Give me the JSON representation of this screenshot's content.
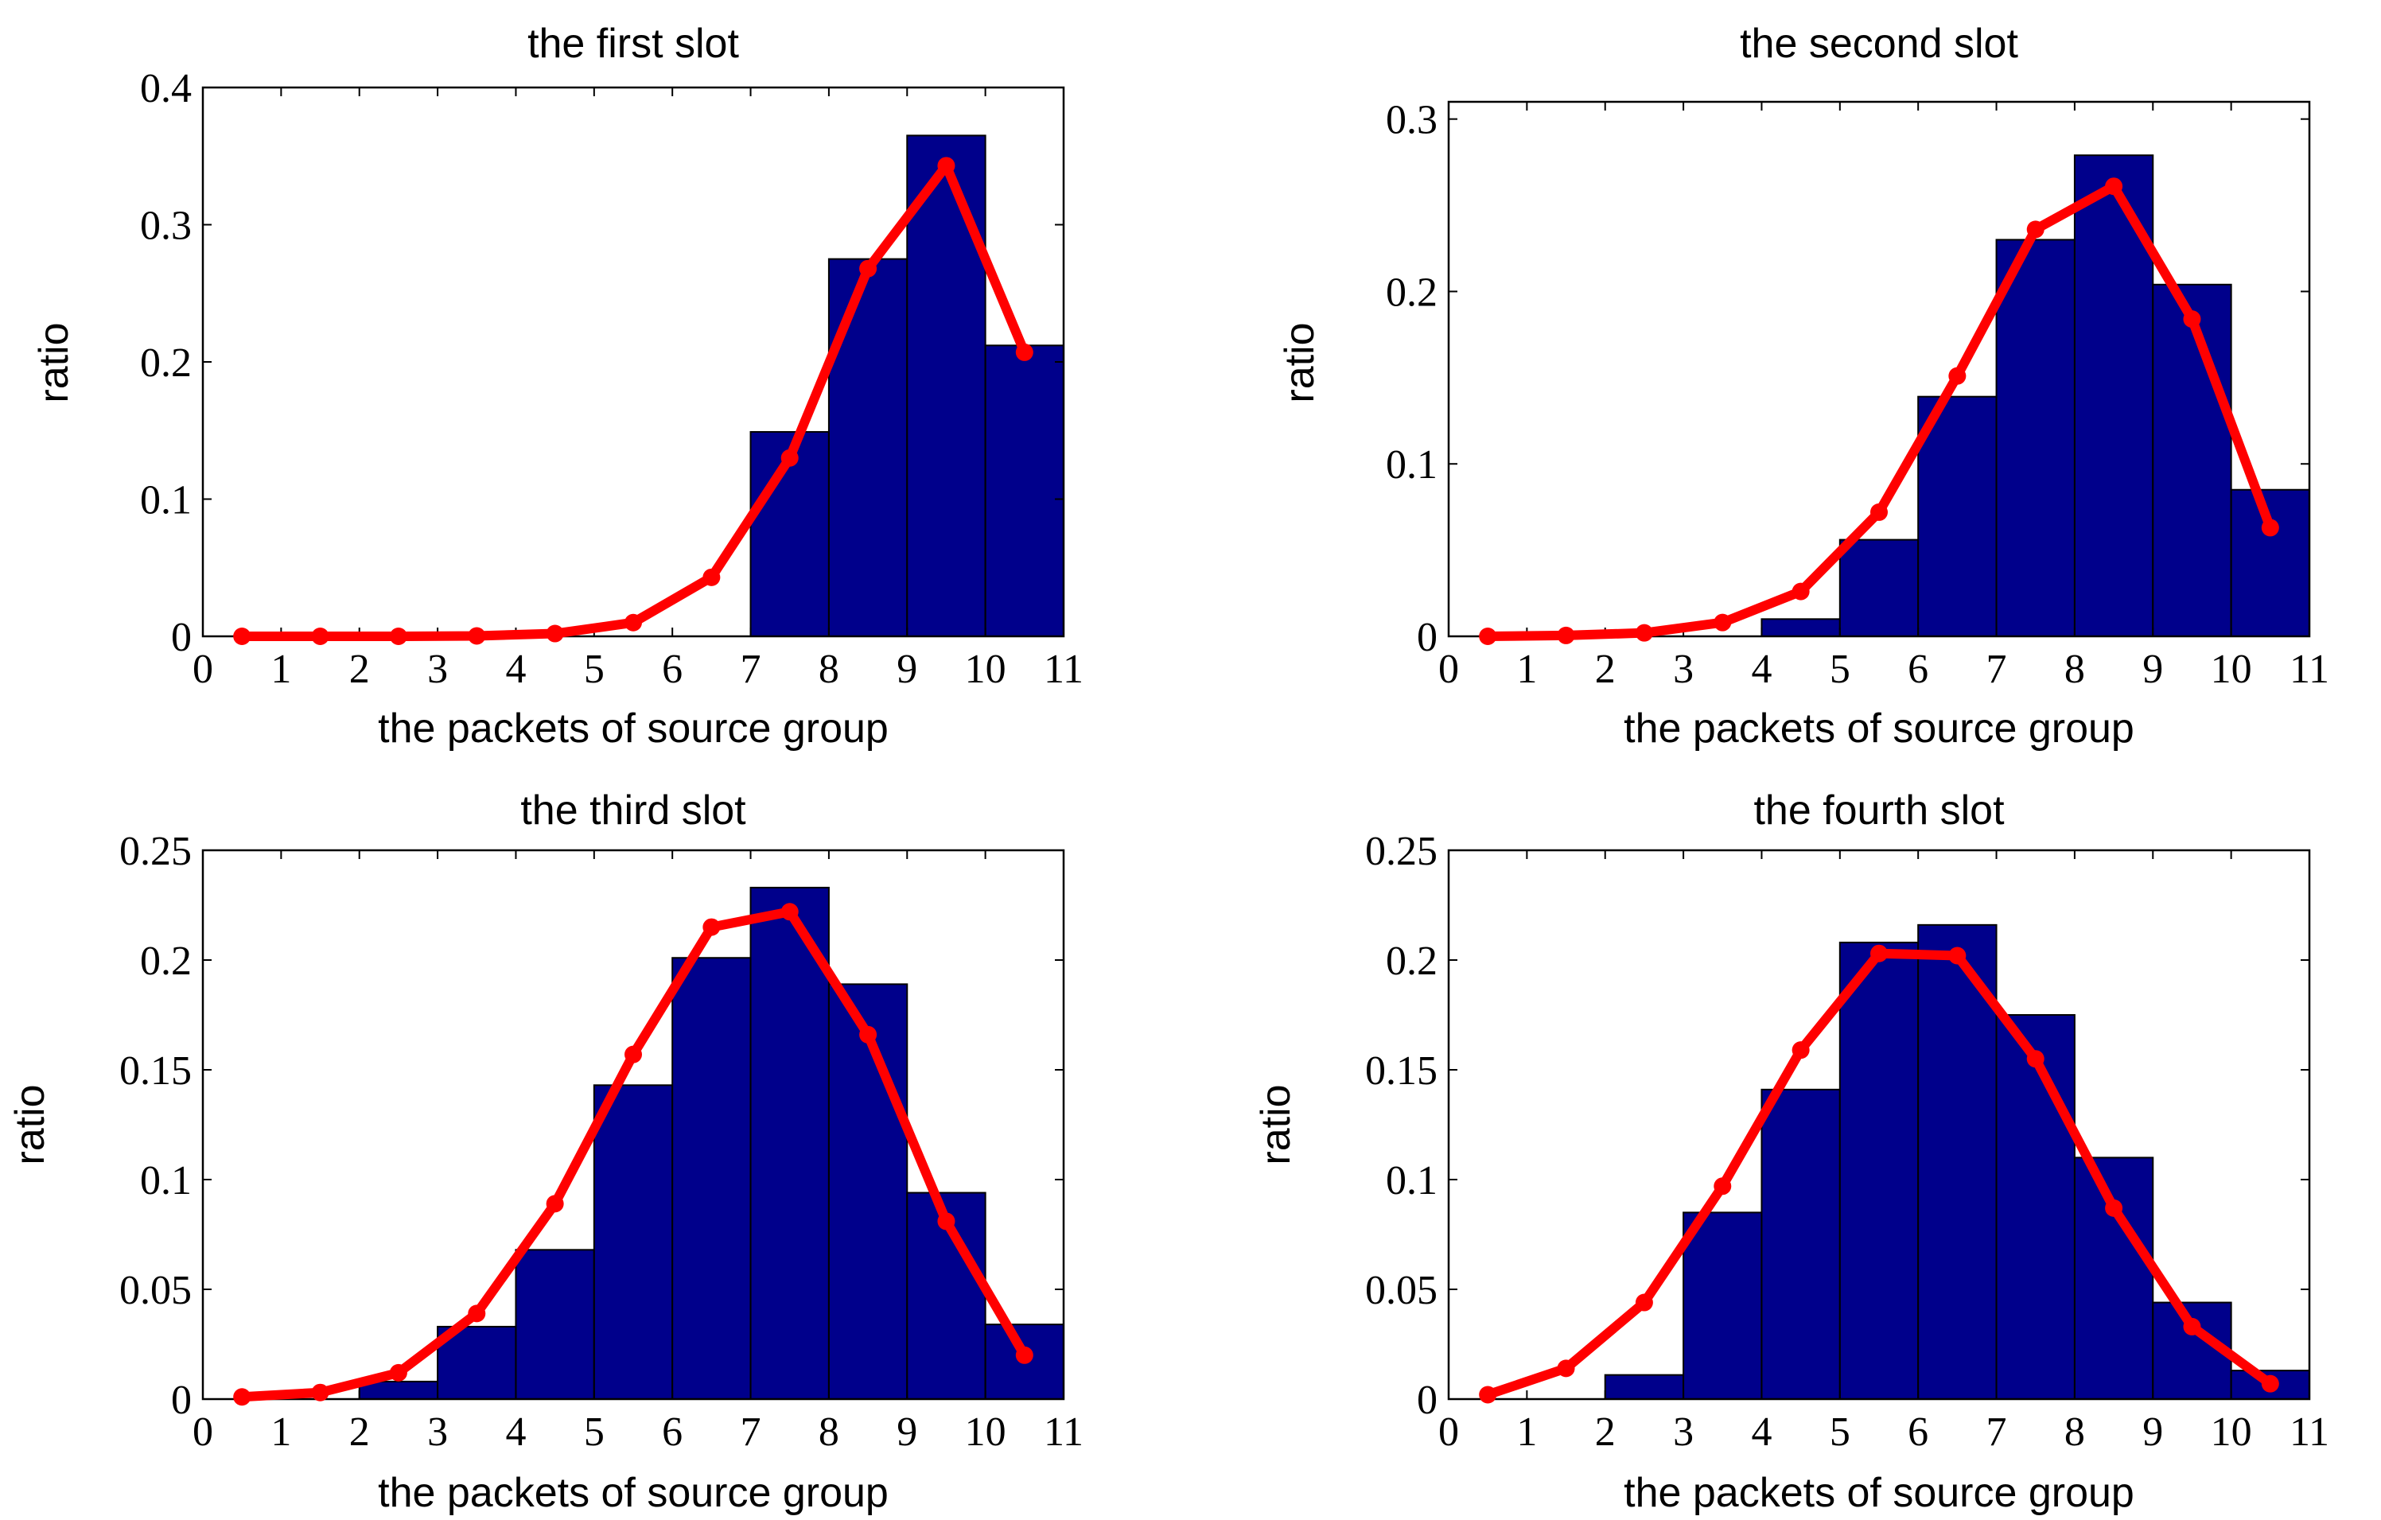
{
  "chart_data": [
    {
      "type": "bar",
      "title": "the first slot",
      "xlabel": "the packets of source group",
      "ylabel": "ratio",
      "xlim": [
        0,
        11
      ],
      "ylim": [
        0,
        0.4
      ],
      "xticks": [
        0,
        1,
        2,
        3,
        4,
        5,
        6,
        7,
        8,
        9,
        10,
        11
      ],
      "xtick_labels": [
        "0",
        "1",
        "2",
        "3",
        "4",
        "5",
        "6",
        "7",
        "8",
        "9",
        "10",
        "11"
      ],
      "yticks": [
        0,
        0.1,
        0.2,
        0.3,
        0.4
      ],
      "ytick_labels": [
        "0",
        "0.1",
        "0.2",
        "0.3",
        "0.4"
      ],
      "bar_color": "#00008b",
      "bar_edges": [
        0,
        1,
        2,
        3,
        4,
        5,
        6,
        7,
        8,
        9,
        10,
        11
      ],
      "bar_values": [
        0,
        0,
        0,
        0,
        0,
        0,
        0,
        0.149,
        0.275,
        0.365,
        0.212
      ],
      "line_color": "#ff0000",
      "line_x": [
        0.5,
        1.5,
        2.5,
        3.5,
        4.5,
        5.5,
        6.5,
        7.5,
        8.5,
        9.5,
        10.5
      ],
      "line_y": [
        0,
        0,
        0,
        0.0003,
        0.002,
        0.01,
        0.043,
        0.13,
        0.268,
        0.343,
        0.207
      ]
    },
    {
      "type": "bar",
      "title": "the second slot",
      "xlabel": "the packets of source group",
      "ylabel": "ratio",
      "xlim": [
        0,
        11
      ],
      "ylim": [
        0,
        0.31
      ],
      "xticks": [
        0,
        1,
        2,
        3,
        4,
        5,
        6,
        7,
        8,
        9,
        10,
        11
      ],
      "xtick_labels": [
        "0",
        "1",
        "2",
        "3",
        "4",
        "5",
        "6",
        "7",
        "8",
        "9",
        "10",
        "11"
      ],
      "yticks": [
        0,
        0.1,
        0.2,
        0.3
      ],
      "ytick_labels": [
        "0",
        "0.1",
        "0.2",
        "0.3"
      ],
      "bar_color": "#00008b",
      "bar_edges": [
        0,
        1,
        2,
        3,
        4,
        5,
        6,
        7,
        8,
        9,
        10,
        11
      ],
      "bar_values": [
        0,
        0,
        0,
        0,
        0.01,
        0.056,
        0.139,
        0.23,
        0.279,
        0.204,
        0.085
      ],
      "line_color": "#ff0000",
      "line_x": [
        0.5,
        1.5,
        2.5,
        3.5,
        4.5,
        5.5,
        6.5,
        7.5,
        8.5,
        9.5,
        10.5
      ],
      "line_y": [
        0,
        0.0005,
        0.002,
        0.008,
        0.026,
        0.072,
        0.151,
        0.236,
        0.261,
        0.184,
        0.063
      ]
    },
    {
      "type": "bar",
      "title": "the third slot",
      "xlabel": "the packets of source group",
      "ylabel": "ratio",
      "xlim": [
        0,
        11
      ],
      "ylim": [
        0,
        0.25
      ],
      "xticks": [
        0,
        1,
        2,
        3,
        4,
        5,
        6,
        7,
        8,
        9,
        10,
        11
      ],
      "xtick_labels": [
        "0",
        "1",
        "2",
        "3",
        "4",
        "5",
        "6",
        "7",
        "8",
        "9",
        "10",
        "11"
      ],
      "yticks": [
        0,
        0.05,
        0.1,
        0.15,
        0.2,
        0.25
      ],
      "ytick_labels": [
        "0",
        "0.05",
        "0.1",
        "0.15",
        "0.2",
        "0.25"
      ],
      "bar_color": "#00008b",
      "bar_edges": [
        0,
        1,
        2,
        3,
        4,
        5,
        6,
        7,
        8,
        9,
        10,
        11
      ],
      "bar_values": [
        0,
        0,
        0.008,
        0.033,
        0.068,
        0.143,
        0.201,
        0.233,
        0.189,
        0.094,
        0.034
      ],
      "line_color": "#ff0000",
      "line_x": [
        0.5,
        1.5,
        2.5,
        3.5,
        4.5,
        5.5,
        6.5,
        7.5,
        8.5,
        9.5,
        10.5
      ],
      "line_y": [
        0.001,
        0.003,
        0.012,
        0.039,
        0.089,
        0.157,
        0.215,
        0.222,
        0.166,
        0.081,
        0.02
      ]
    },
    {
      "type": "bar",
      "title": "the fourth slot",
      "xlabel": "the packets of source group",
      "ylabel": "ratio",
      "xlim": [
        0,
        11
      ],
      "ylim": [
        0,
        0.25
      ],
      "xticks": [
        0,
        1,
        2,
        3,
        4,
        5,
        6,
        7,
        8,
        9,
        10,
        11
      ],
      "xtick_labels": [
        "0",
        "1",
        "2",
        "3",
        "4",
        "5",
        "6",
        "7",
        "8",
        "9",
        "10",
        "11"
      ],
      "yticks": [
        0,
        0.05,
        0.1,
        0.15,
        0.2,
        0.25
      ],
      "ytick_labels": [
        "0",
        "0.05",
        "0.1",
        "0.15",
        "0.2",
        "0.25"
      ],
      "bar_color": "#00008b",
      "bar_edges": [
        0,
        1,
        2,
        3,
        4,
        5,
        6,
        7,
        8,
        9,
        10,
        11
      ],
      "bar_values": [
        0,
        0,
        0.011,
        0.085,
        0.141,
        0.208,
        0.216,
        0.175,
        0.11,
        0.044,
        0.013
      ],
      "line_color": "#ff0000",
      "line_x": [
        0.5,
        1.5,
        2.5,
        3.5,
        4.5,
        5.5,
        6.5,
        7.5,
        8.5,
        9.5,
        10.5
      ],
      "line_y": [
        0.002,
        0.014,
        0.044,
        0.097,
        0.159,
        0.203,
        0.202,
        0.155,
        0.087,
        0.033,
        0.007
      ]
    }
  ]
}
